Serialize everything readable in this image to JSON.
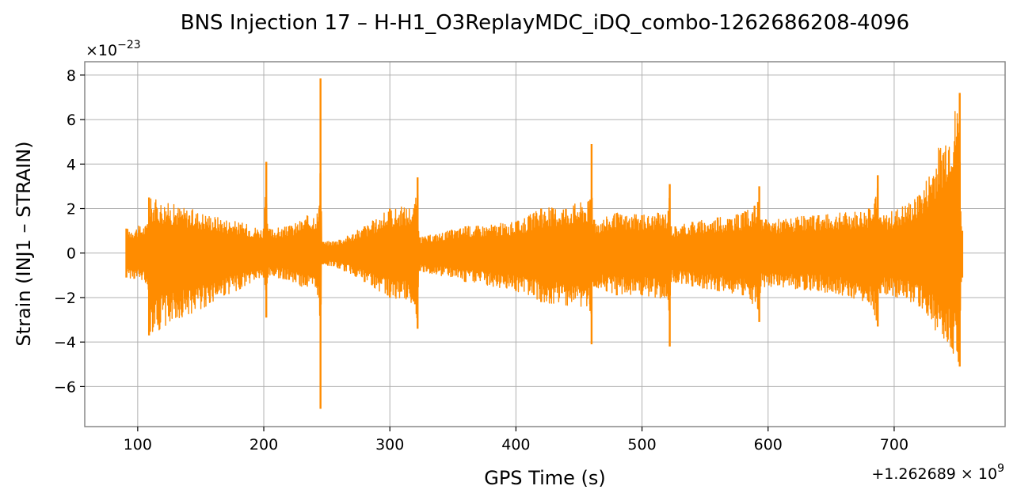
{
  "chart_data": {
    "type": "line",
    "title": "BNS Injection 17 – H-H1_O3ReplayMDC_iDQ_combo-1262686208-4096",
    "xlabel": "GPS Time (s)",
    "ylabel": "Strain (INJ1 – STRAIN)",
    "x_offset_label": "+1.262689 × 10",
    "x_offset_exponent": "9",
    "y_scale_label": "×10",
    "y_scale_exponent": "−23",
    "xlim": [
      58,
      788
    ],
    "ylim": [
      -7.8,
      8.6
    ],
    "x_ticks": [
      100,
      200,
      300,
      400,
      500,
      600,
      700
    ],
    "x_tick_labels": [
      "100",
      "200",
      "300",
      "400",
      "500",
      "600",
      "700"
    ],
    "y_ticks": [
      -6,
      -4,
      -2,
      0,
      2,
      4,
      6,
      8
    ],
    "y_tick_labels": [
      "−6",
      "−4",
      "−2",
      "0",
      "2",
      "4",
      "6",
      "8"
    ],
    "grid": true,
    "series": [
      {
        "color": "#ff8c00",
        "envelope_x": [
          91,
          108,
          109,
          200,
          202,
          203,
          220,
          244,
          245,
          246,
          247,
          260,
          280,
          300,
          320,
          322,
          323,
          324,
          360,
          400,
          420,
          459,
          460,
          461,
          462,
          480,
          500,
          521,
          522,
          523,
          540,
          560,
          580,
          592,
          593,
          594,
          640,
          680,
          687,
          688,
          689,
          720,
          752,
          753,
          754
        ],
        "envelope_upper": [
          1.1,
          1.3,
          2.5,
          1.1,
          4.1,
          1.1,
          1.2,
          2.0,
          7.85,
          0.5,
          0.5,
          0.6,
          1.2,
          2.0,
          2.2,
          3.4,
          0.7,
          0.7,
          1.2,
          1.4,
          2.0,
          2.4,
          4.9,
          1.3,
          1.5,
          1.8,
          1.7,
          1.9,
          3.1,
          1.2,
          1.4,
          1.6,
          1.8,
          2.3,
          3.0,
          1.5,
          1.7,
          2.0,
          3.5,
          1.5,
          1.6,
          2.6,
          7.2,
          1.2,
          1.0
        ],
        "envelope_lower": [
          -1.1,
          -1.4,
          -3.7,
          -1.1,
          -2.9,
          -1.1,
          -1.2,
          -2.0,
          -7.0,
          -0.5,
          -0.5,
          -0.7,
          -1.3,
          -2.0,
          -2.3,
          -3.4,
          -0.8,
          -0.8,
          -1.3,
          -1.7,
          -2.2,
          -2.6,
          -4.1,
          -1.3,
          -1.5,
          -1.9,
          -1.9,
          -2.1,
          -4.2,
          -1.3,
          -1.5,
          -1.7,
          -1.9,
          -2.5,
          -3.1,
          -1.5,
          -1.7,
          -2.2,
          -3.3,
          -1.6,
          -1.8,
          -2.4,
          -5.1,
          -1.3,
          -1.1
        ]
      }
    ]
  }
}
